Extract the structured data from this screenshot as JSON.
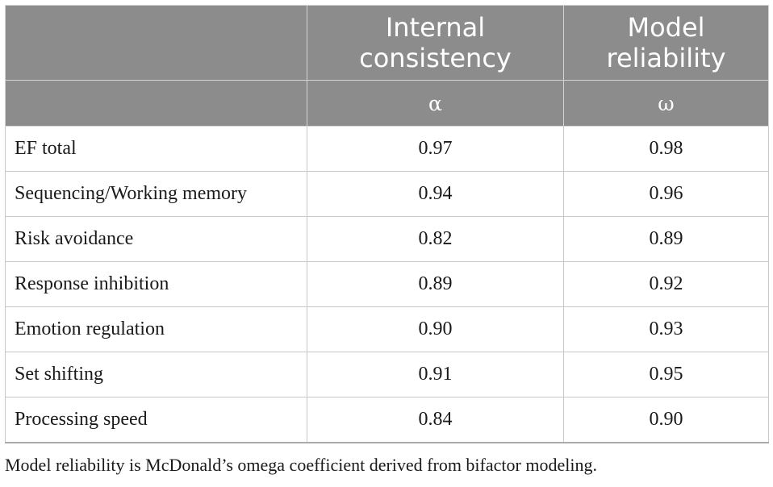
{
  "table": {
    "header": {
      "label_col": "",
      "col1": "Internal\nconsistency",
      "col2": "Model\nreliability"
    },
    "symbols": {
      "label_col": "",
      "col1": "α",
      "col2": "ω"
    },
    "rows": [
      {
        "label": "EF total",
        "alpha": "0.97",
        "omega": "0.98"
      },
      {
        "label": "Sequencing/Working memory",
        "alpha": "0.94",
        "omega": "0.96"
      },
      {
        "label": "Risk avoidance",
        "alpha": "0.82",
        "omega": "0.89"
      },
      {
        "label": "Response inhibition",
        "alpha": "0.89",
        "omega": "0.92"
      },
      {
        "label": "Emotion regulation",
        "alpha": "0.90",
        "omega": "0.93"
      },
      {
        "label": "Set shifting",
        "alpha": "0.91",
        "omega": "0.95"
      },
      {
        "label": "Processing speed",
        "alpha": "0.84",
        "omega": "0.90"
      }
    ]
  },
  "footnote": "Model reliability is McDonald’s omega coefficient derived from bifactor modeling.",
  "colors": {
    "header_bg": "#8c8c8c",
    "header_text": "#ffffff",
    "body_text": "#1a1a1a",
    "border": "#c8c8c8"
  }
}
